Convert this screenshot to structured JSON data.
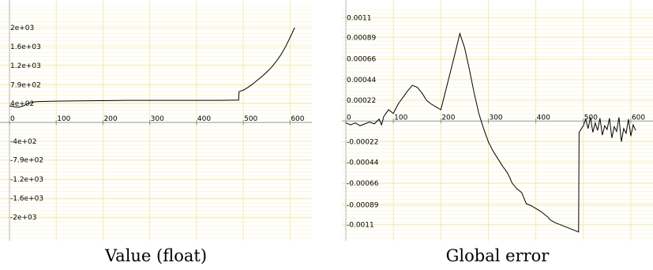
{
  "chart_data": [
    {
      "type": "line",
      "title": "Value (float)",
      "xlim": [
        0,
        640
      ],
      "ylim": [
        -2430,
        2450
      ],
      "x_ticks": [
        0,
        100,
        200,
        300,
        400,
        500,
        600
      ],
      "y_ticks": [
        {
          "v": 2000,
          "label": "2e+03"
        },
        {
          "v": 1600,
          "label": "1.6e+03"
        },
        {
          "v": 1200,
          "label": "1.2e+03"
        },
        {
          "v": 790,
          "label": "7.9e+02"
        },
        {
          "v": 400,
          "label": "4e+02"
        },
        {
          "v": -400,
          "label": "-4e+02"
        },
        {
          "v": -790,
          "label": "-7.9e+02"
        },
        {
          "v": -1200,
          "label": "-1.2e+03"
        },
        {
          "v": -1600,
          "label": "-1.6e+03"
        },
        {
          "v": -2000,
          "label": "-2e+03"
        }
      ],
      "grid": true,
      "series": [
        {
          "x": [
            0,
            10,
            20,
            30,
            40,
            50,
            60,
            80,
            100,
            150,
            200,
            250,
            300,
            350,
            400,
            450,
            480,
            490,
            491,
            500,
            510,
            520,
            530,
            540,
            550,
            560,
            570,
            580,
            590,
            600,
            610
          ],
          "y": [
            350,
            330,
            320,
            350,
            400,
            430,
            440,
            445,
            450,
            455,
            460,
            465,
            465,
            465,
            465,
            465,
            470,
            470,
            650,
            680,
            740,
            810,
            890,
            970,
            1060,
            1160,
            1280,
            1420,
            1590,
            1790,
            2000
          ]
        }
      ]
    },
    {
      "type": "line",
      "title": "Global error",
      "xlim": [
        0,
        640
      ],
      "ylim": [
        -0.00124,
        0.00122
      ],
      "x_ticks": [
        0,
        100,
        200,
        300,
        400,
        500,
        600
      ],
      "y_ticks": [
        {
          "v": 0.0011,
          "label": "0.0011"
        },
        {
          "v": 0.00089,
          "label": "0.00089"
        },
        {
          "v": 0.00066,
          "label": "0.00066"
        },
        {
          "v": 0.00044,
          "label": "0.00044"
        },
        {
          "v": 0.00022,
          "label": "0.00022"
        },
        {
          "v": -0.00022,
          "label": "-0.00022"
        },
        {
          "v": -0.00044,
          "label": "-0.00044"
        },
        {
          "v": -0.00066,
          "label": "-0.00066"
        },
        {
          "v": -0.00089,
          "label": "-0.00089"
        },
        {
          "v": -0.0011,
          "label": "-0.0011"
        }
      ],
      "grid": true,
      "series": [
        {
          "x": [
            0,
            10,
            20,
            30,
            40,
            50,
            60,
            70,
            75,
            80,
            90,
            100,
            110,
            120,
            130,
            140,
            150,
            160,
            170,
            180,
            190,
            200,
            210,
            220,
            230,
            240,
            250,
            260,
            270,
            280,
            290,
            300,
            310,
            320,
            330,
            340,
            345,
            350,
            360,
            370,
            375,
            380,
            390,
            400,
            410,
            420,
            425,
            430,
            440,
            450,
            460,
            470,
            480,
            490,
            491,
            500,
            505,
            510,
            515,
            520,
            525,
            530,
            535,
            540,
            545,
            550,
            555,
            560,
            565,
            570,
            575,
            580,
            585,
            590,
            595,
            600,
            605,
            610
          ],
          "y": [
            -2e-05,
            -4e-05,
            -2e-05,
            -5e-05,
            -3e-05,
            -1e-05,
            -3e-05,
            2e-05,
            -4e-05,
            5e-05,
            0.00012,
            8e-05,
            0.00018,
            0.00025,
            0.00032,
            0.00038,
            0.00036,
            0.0003,
            0.00022,
            0.00018,
            0.00015,
            0.00012,
            0.00032,
            0.00052,
            0.00072,
            0.00093,
            0.00078,
            0.00055,
            0.0003,
            8e-05,
            -8e-05,
            -0.00022,
            -0.00032,
            -0.0004,
            -0.00048,
            -0.00055,
            -0.0006,
            -0.00066,
            -0.00072,
            -0.00076,
            -0.00082,
            -0.00088,
            -0.0009,
            -0.00093,
            -0.00096,
            -0.001,
            -0.00102,
            -0.00105,
            -0.00108,
            -0.0011,
            -0.00112,
            -0.00114,
            -0.00116,
            -0.00118,
            -0.00012,
            -5e-05,
            2e-05,
            -8e-05,
            4e-05,
            -0.00012,
            -2e-05,
            -0.0001,
            3e-05,
            -0.00015,
            -5e-05,
            -9e-05,
            3e-05,
            -0.00018,
            -6e-05,
            -0.00011,
            4e-05,
            -0.00022,
            -8e-05,
            -0.00013,
            2e-05,
            -0.00016,
            -4e-05,
            -0.0001
          ]
        }
      ]
    }
  ]
}
